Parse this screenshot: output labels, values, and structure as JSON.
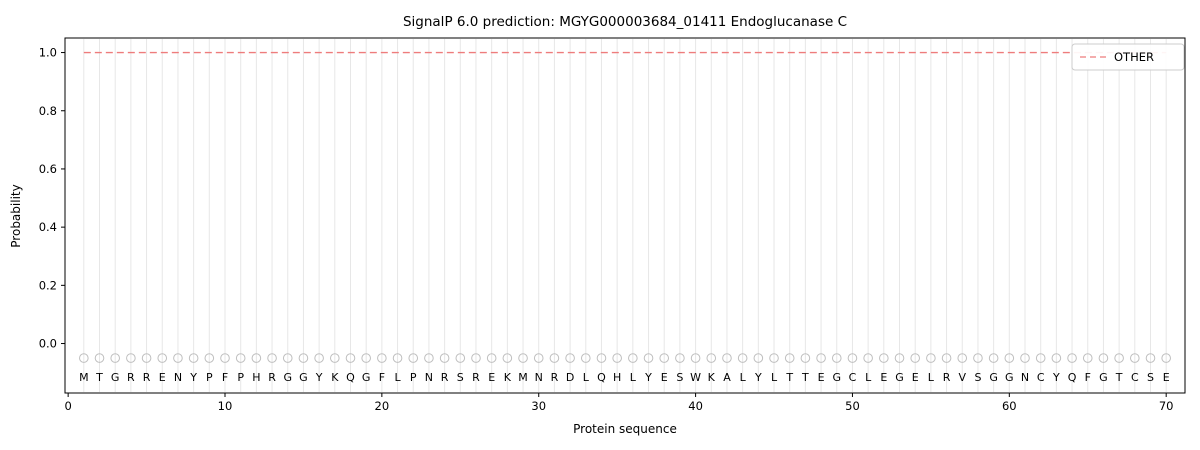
{
  "chart_data": {
    "type": "line",
    "title": "SignalP 6.0 prediction: MGYG000003684_01411 Endoglucanase C",
    "xlabel": "Protein sequence",
    "ylabel": "Probability",
    "xlim": [
      -0.2,
      71.2
    ],
    "ylim": [
      -0.17,
      1.05
    ],
    "xticks": [
      0,
      10,
      20,
      30,
      40,
      50,
      60,
      70
    ],
    "yticks": [
      "0.0",
      "0.2",
      "0.4",
      "0.6",
      "0.8",
      "1.0"
    ],
    "grid": "vertical gridline at each residue position, no horizontal gridlines",
    "legend": {
      "position": "upper-right",
      "entries": [
        {
          "label": "OTHER",
          "color": "#ee7c7c",
          "style": "dashed"
        }
      ]
    },
    "series": [
      {
        "name": "OTHER",
        "style": "dashed",
        "color": "#ee7c7c",
        "x_start": 1,
        "x_end": 70,
        "y_constant": 1.0
      }
    ],
    "sequence": "MTGRRENYPFPHRGGYKQGFLPNRSREKMNRDLQHLYESWKALYLTTEGCLEGELRVSGGNCYQFGTCSE",
    "residue_markers": {
      "shape": "open-circle",
      "y": -0.05
    }
  },
  "colors": {
    "background": "#ffffff",
    "frame": "#000000",
    "grid": "#e7e7e7",
    "tick": "#000000",
    "marker": "#bfbfbf",
    "letter": "#1a1a1a",
    "legend_border": "#cccccc"
  }
}
